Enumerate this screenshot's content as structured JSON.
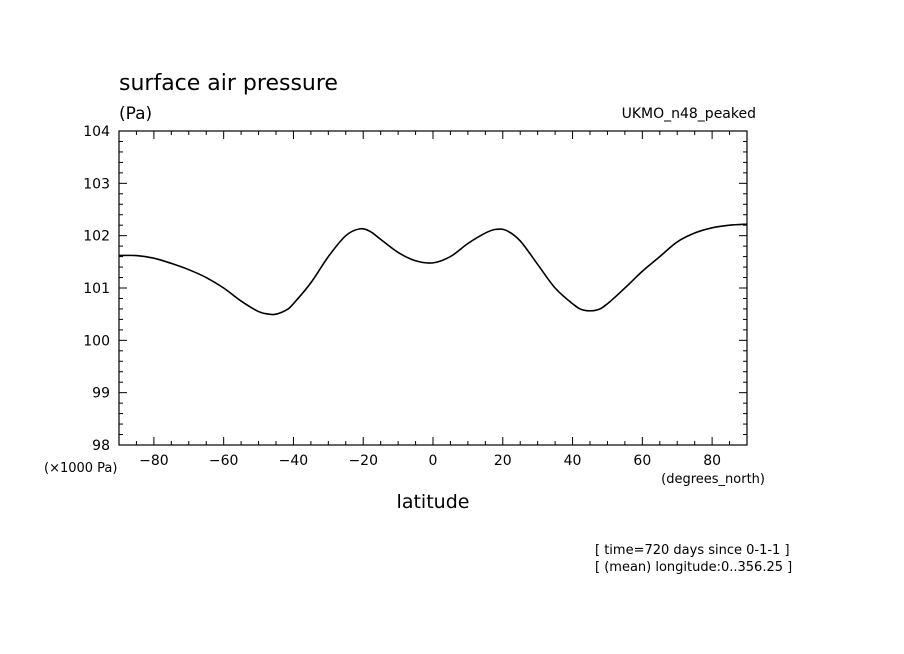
{
  "chart_data": {
    "type": "line",
    "title": "surface air pressure",
    "units_label": "(Pa)",
    "dataset_label": "UKMO_n48_peaked",
    "xlabel": "latitude",
    "x_units": "(degrees_north)",
    "y_scale_label": "(×1000 Pa)",
    "xlim": [
      -90,
      90
    ],
    "ylim": [
      98,
      104
    ],
    "x_ticks": [
      -80,
      -60,
      -40,
      -20,
      0,
      20,
      40,
      60,
      80
    ],
    "x_tick_labels": [
      "−80",
      "−60",
      "−40",
      "−20",
      "0",
      "20",
      "40",
      "60",
      "80"
    ],
    "y_ticks": [
      98,
      99,
      100,
      101,
      102,
      103,
      104
    ],
    "y_tick_labels": [
      "98",
      "99",
      "100",
      "101",
      "102",
      "103",
      "104"
    ],
    "grid": false,
    "series": [
      {
        "x": [
          -90,
          -85,
          -80,
          -75,
          -70,
          -65,
          -60,
          -55,
          -50,
          -47,
          -45,
          -42,
          -40,
          -35,
          -30,
          -25,
          -21,
          -18,
          -15,
          -10,
          -5,
          0,
          5,
          10,
          15,
          18,
          21,
          25,
          30,
          35,
          40,
          43,
          47,
          50,
          55,
          60,
          65,
          70,
          75,
          80,
          85,
          90
        ],
        "y": [
          101.62,
          101.62,
          101.57,
          101.47,
          101.35,
          101.2,
          101.0,
          100.75,
          100.55,
          100.5,
          100.5,
          100.58,
          100.7,
          101.1,
          101.6,
          102.0,
          102.13,
          102.08,
          101.93,
          101.68,
          101.52,
          101.48,
          101.6,
          101.85,
          102.05,
          102.12,
          102.1,
          101.9,
          101.45,
          101.0,
          100.7,
          100.58,
          100.58,
          100.7,
          101.0,
          101.32,
          101.6,
          101.88,
          102.05,
          102.15,
          102.2,
          102.22
        ]
      }
    ]
  },
  "annotations": {
    "time_note": "[ time=720 days since 0-1-1 ]",
    "longitude_note": "[ (mean) longitude:0..356.25 ]"
  },
  "colors": {
    "line": "#000000",
    "background": "#ffffff"
  }
}
